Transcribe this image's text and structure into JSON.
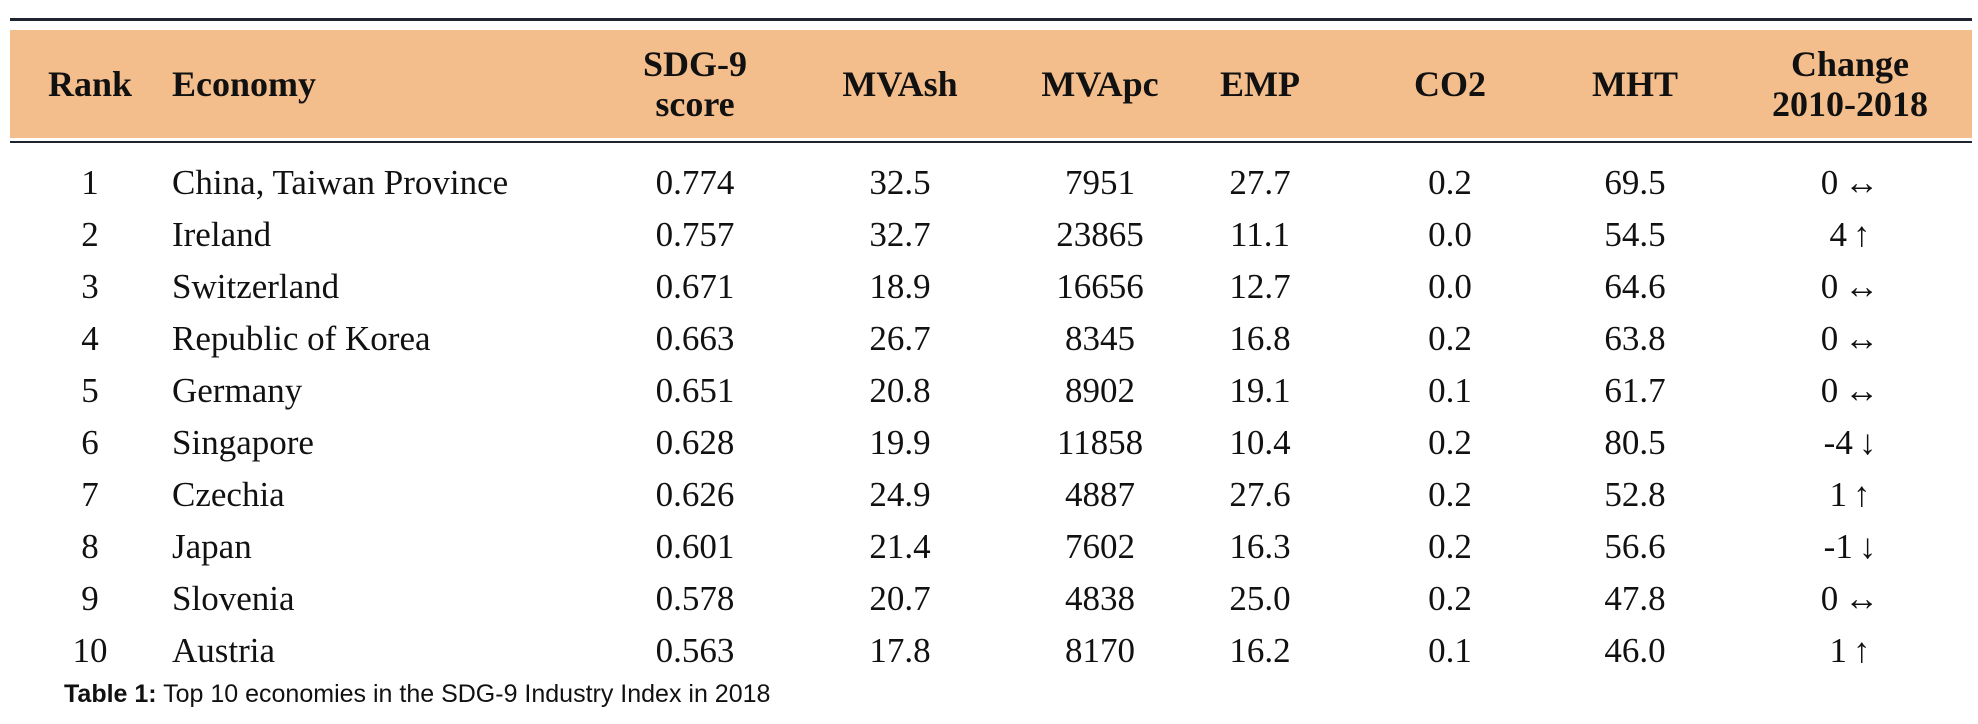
{
  "table": {
    "headers": {
      "rank": "Rank",
      "economy": "Economy",
      "score_line1": "SDG-9",
      "score_line2": "score",
      "mvash": "MVAsh",
      "mvapc": "MVApc",
      "emp": "EMP",
      "co2": "CO2",
      "mht": "MHT",
      "change_line1": "Change",
      "change_line2": "2010-2018"
    },
    "rows": [
      {
        "rank": "1",
        "economy": "China, Taiwan Province",
        "score": "0.774",
        "mvash": "32.5",
        "mvapc": "7951",
        "emp": "27.7",
        "co2": "0.2",
        "mht": "69.5",
        "change": "0",
        "arrow": "↔"
      },
      {
        "rank": "2",
        "economy": "Ireland",
        "score": "0.757",
        "mvash": "32.7",
        "mvapc": "23865",
        "emp": "11.1",
        "co2": "0.0",
        "mht": "54.5",
        "change": "4",
        "arrow": "↑"
      },
      {
        "rank": "3",
        "economy": "Switzerland",
        "score": "0.671",
        "mvash": "18.9",
        "mvapc": "16656",
        "emp": "12.7",
        "co2": "0.0",
        "mht": "64.6",
        "change": "0",
        "arrow": "↔"
      },
      {
        "rank": "4",
        "economy": "Republic of Korea",
        "score": "0.663",
        "mvash": "26.7",
        "mvapc": "8345",
        "emp": "16.8",
        "co2": "0.2",
        "mht": "63.8",
        "change": "0",
        "arrow": "↔"
      },
      {
        "rank": "5",
        "economy": "Germany",
        "score": "0.651",
        "mvash": "20.8",
        "mvapc": "8902",
        "emp": "19.1",
        "co2": "0.1",
        "mht": "61.7",
        "change": "0",
        "arrow": "↔"
      },
      {
        "rank": "6",
        "economy": "Singapore",
        "score": "0.628",
        "mvash": "19.9",
        "mvapc": "11858",
        "emp": "10.4",
        "co2": "0.2",
        "mht": "80.5",
        "change": "-4",
        "arrow": "↓"
      },
      {
        "rank": "7",
        "economy": "Czechia",
        "score": "0.626",
        "mvash": "24.9",
        "mvapc": "4887",
        "emp": "27.6",
        "co2": "0.2",
        "mht": "52.8",
        "change": "1",
        "arrow": "↑"
      },
      {
        "rank": "8",
        "economy": "Japan",
        "score": "0.601",
        "mvash": "21.4",
        "mvapc": "7602",
        "emp": "16.3",
        "co2": "0.2",
        "mht": "56.6",
        "change": "-1",
        "arrow": "↓"
      },
      {
        "rank": "9",
        "economy": "Slovenia",
        "score": "0.578",
        "mvash": "20.7",
        "mvapc": "4838",
        "emp": "25.0",
        "co2": "0.2",
        "mht": "47.8",
        "change": "0",
        "arrow": "↔"
      },
      {
        "rank": "10",
        "economy": "Austria",
        "score": "0.563",
        "mvash": "17.8",
        "mvapc": "8170",
        "emp": "16.2",
        "co2": "0.1",
        "mht": "46.0",
        "change": "1",
        "arrow": "↑"
      }
    ]
  },
  "caption": {
    "label": "Table 1:",
    "text": " Top 10 economies in the SDG-9 Industry Index in 2018"
  },
  "colors": {
    "header_band": "#f4be8c",
    "rule": "#1f2530"
  }
}
